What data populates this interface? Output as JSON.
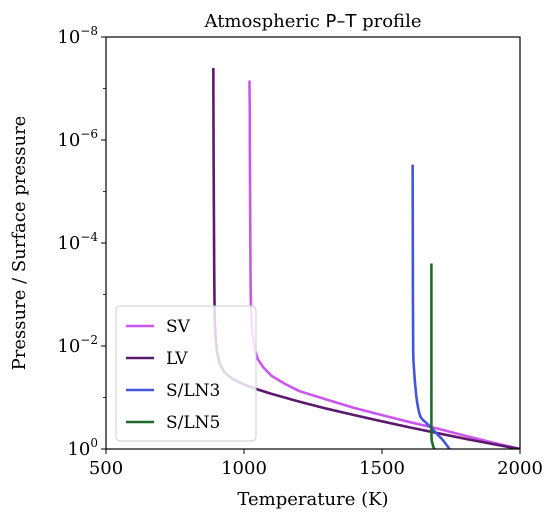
{
  "chart_data": {
    "type": "line",
    "title_prefix": "Atmospheric ",
    "title_symbol": "P–T",
    "title_suffix": " profile",
    "xlabel": "Temperature (K)",
    "ylabel": "Pressure / Surface pressure",
    "xlim": [
      500,
      2000
    ],
    "ylim": [
      1,
      1e-08
    ],
    "yscale": "log",
    "y_inverted": true,
    "xticks": [
      500,
      1000,
      1500,
      2000
    ],
    "xtick_labels": [
      "500",
      "1000",
      "1500",
      "2000"
    ],
    "yticks": [
      1,
      0.01,
      0.0001,
      1e-06,
      1e-08
    ],
    "ytick_labels": [
      {
        "base": "10",
        "exp": "0"
      },
      {
        "base": "10",
        "exp": "−2"
      },
      {
        "base": "10",
        "exp": "−4"
      },
      {
        "base": "10",
        "exp": "−6"
      },
      {
        "base": "10",
        "exp": "−8"
      }
    ],
    "legend_position": "lower-left",
    "series": [
      {
        "name": "SV",
        "color": "#cc55ee",
        "x": [
          2000,
          1900,
          1800,
          1700,
          1600,
          1500,
          1400,
          1300,
          1200,
          1150,
          1100,
          1070,
          1050,
          1040,
          1035,
          1030,
          1027,
          1025,
          1024,
          1023,
          1022,
          1021,
          1021,
          1020,
          1020
        ],
        "y": [
          1,
          0.75,
          0.55,
          0.4,
          0.3,
          0.22,
          0.16,
          0.11,
          0.075,
          0.055,
          0.038,
          0.026,
          0.018,
          0.012,
          0.008,
          0.005,
          0.003,
          0.0015,
          0.0007,
          0.0001,
          1e-05,
          1e-06,
          3e-07,
          1e-07,
          7e-08
        ]
      },
      {
        "name": "LV",
        "color": "#5c1a6e",
        "x": [
          2000,
          1900,
          1800,
          1700,
          1600,
          1500,
          1400,
          1300,
          1200,
          1100,
          1050,
          1000,
          960,
          930,
          912,
          902,
          897,
          894,
          893,
          892,
          891,
          890,
          889,
          889
        ],
        "y": [
          1,
          0.8,
          0.63,
          0.49,
          0.38,
          0.29,
          0.22,
          0.165,
          0.12,
          0.085,
          0.07,
          0.056,
          0.044,
          0.033,
          0.022,
          0.013,
          0.007,
          0.003,
          0.0012,
          0.0003,
          3e-05,
          3e-06,
          1e-07,
          4e-08
        ]
      },
      {
        "name": "S/LN3",
        "color": "#4455dd",
        "x": [
          1745,
          1735,
          1725,
          1715,
          1700,
          1690,
          1680,
          1670,
          1660,
          1650,
          1645,
          1640,
          1635,
          1632,
          1629,
          1626,
          1624,
          1622,
          1620,
          1618,
          1616,
          1614,
          1613,
          1612,
          1611
        ],
        "y": [
          1,
          0.85,
          0.72,
          0.62,
          0.52,
          0.45,
          0.4,
          0.35,
          0.31,
          0.28,
          0.26,
          0.24,
          0.2,
          0.17,
          0.14,
          0.11,
          0.09,
          0.07,
          0.055,
          0.04,
          0.028,
          0.02,
          0.012,
          0.001,
          3e-06
        ]
      },
      {
        "name": "S/LN5",
        "color": "#1e6b2e",
        "x": [
          1690,
          1685,
          1683,
          1680,
          1679,
          1679
        ],
        "y": [
          1,
          0.88,
          0.78,
          0.69,
          0.5,
          0.00025
        ]
      }
    ]
  }
}
